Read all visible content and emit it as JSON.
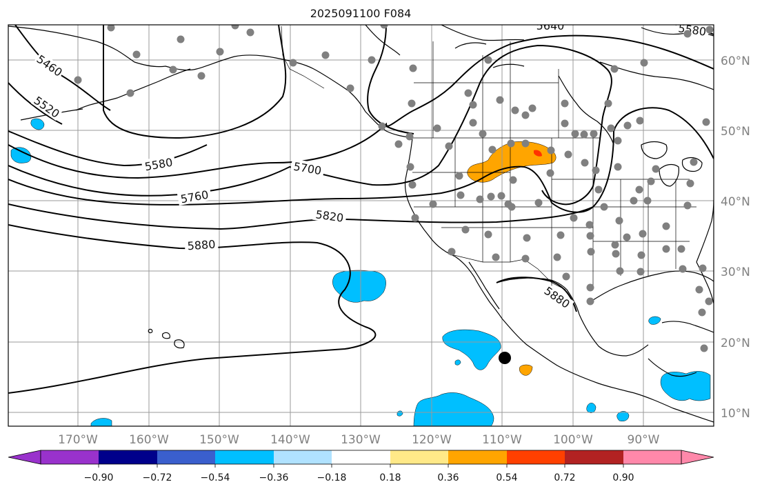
{
  "title": "2025091100 F084",
  "map": {
    "lon_labels": [
      "170°W",
      "160°W",
      "150°W",
      "140°W",
      "130°W",
      "120°W",
      "110°W",
      "100°W",
      "90°W"
    ],
    "lat_labels": [
      "60°N",
      "50°N",
      "40°N",
      "30°N",
      "20°N",
      "10°N"
    ],
    "contour_labels": [
      "5460",
      "5520",
      "5580",
      "5700",
      "5760",
      "5820",
      "5880",
      "5880",
      "5640",
      "5580"
    ],
    "colors": {
      "frame": "#000000",
      "grid": "#9a9a9a",
      "station_dot": "#808080",
      "storm_dot": "#000000",
      "neg_fill": "#00bfff",
      "pos_fill": "#ffa500",
      "pos_high_fill": "#ff3300"
    }
  },
  "colorbar": {
    "ticks": [
      "−0.90",
      "−0.72",
      "−0.54",
      "−0.36",
      "−0.18",
      "0.18",
      "0.36",
      "0.54",
      "0.72",
      "0.90"
    ],
    "colors": [
      "#9932cc",
      "#00008b",
      "#3a5fcd",
      "#00bfff",
      "#b0e2ff",
      "#ffffff",
      "#ffe988",
      "#ffa500",
      "#ff4000",
      "#b22222",
      "#ff88aa"
    ],
    "extend_low": "#9932cc",
    "extend_high": "#ff88aa"
  }
}
